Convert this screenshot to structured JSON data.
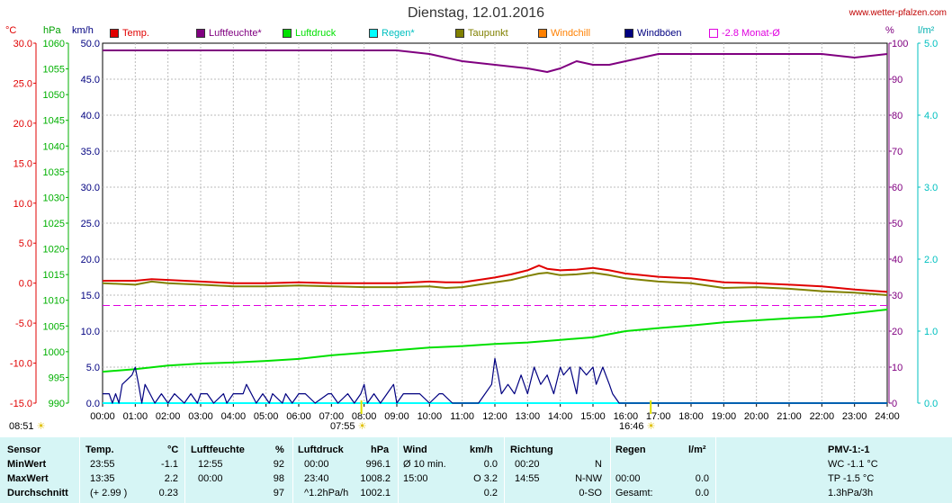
{
  "title": "Dienstag, 12.01.2016",
  "site": "www.wetter-pfalzen.com",
  "units": {
    "temp": "°C",
    "pressure": "hPa",
    "wind": "km/h",
    "humidity": "%",
    "rain": "l/m²"
  },
  "legend": [
    {
      "label": "Temp.",
      "color": "#e00000",
      "hollow": false
    },
    {
      "label": "Luftfeuchte*",
      "color": "#800080",
      "hollow": false
    },
    {
      "label": "Luftdruck",
      "color": "#00e000",
      "hollow": false
    },
    {
      "label": "Regen*",
      "color": "#00ffff",
      "hollow": false
    },
    {
      "label": "Taupunkt",
      "color": "#808000",
      "hollow": false
    },
    {
      "label": "Windchill",
      "color": "#ff8000",
      "hollow": false
    },
    {
      "label": "Windböen",
      "color": "#000080",
      "hollow": false
    },
    {
      "label": "-2.8 Monat-Ø",
      "color": "#e000e0",
      "hollow": true
    }
  ],
  "sun": {
    "sunrise": "07:55",
    "sunset": "16:46",
    "time": "08:51"
  },
  "colors": {
    "temp": "#e00000",
    "humidity": "#800080",
    "pressure": "#00e000",
    "rain": "#00ffff",
    "dewpoint": "#808000",
    "windchill": "#ff8000",
    "gust": "#000080",
    "monthavg": "#e000e0"
  },
  "chart_data": {
    "type": "line",
    "title": "Dienstag, 12.01.2016",
    "x_ticks": [
      "00:00",
      "01:00",
      "02:00",
      "03:00",
      "04:00",
      "05:00",
      "06:00",
      "07:00",
      "08:00",
      "09:00",
      "10:00",
      "11:00",
      "12:00",
      "13:00",
      "14:00",
      "15:00",
      "16:00",
      "17:00",
      "18:00",
      "19:00",
      "20:00",
      "21:00",
      "22:00",
      "23:00",
      "24:00"
    ],
    "axes": {
      "temp": {
        "label": "°C",
        "range": [
          -15,
          30
        ],
        "ticks": [
          "30.0",
          "25.0",
          "20.0",
          "15.0",
          "10.0",
          "5.0",
          "0.0",
          "-5.0",
          "-10.0",
          "-15.0"
        ]
      },
      "pressure": {
        "label": "hPa",
        "range": [
          990,
          1060
        ],
        "ticks": [
          "1060",
          "1055",
          "1050",
          "1045",
          "1040",
          "1035",
          "1030",
          "1025",
          "1020",
          "1015",
          "1010",
          "1005",
          "1000",
          "995",
          "990"
        ]
      },
      "wind": {
        "label": "km/h",
        "range": [
          0,
          50
        ],
        "ticks": [
          "50.0",
          "45.0",
          "40.0",
          "35.0",
          "30.0",
          "25.0",
          "20.0",
          "15.0",
          "10.0",
          "5.0",
          "0.0"
        ]
      },
      "humidity": {
        "label": "%",
        "range": [
          0,
          100
        ],
        "ticks": [
          "100",
          "90",
          "80",
          "70",
          "60",
          "50",
          "40",
          "30",
          "20",
          "10",
          "0"
        ]
      },
      "rain": {
        "label": "l/m²",
        "range": [
          0,
          5
        ],
        "ticks": [
          "5.0",
          "4.0",
          "3.0",
          "2.0",
          "1.0",
          "0.0"
        ]
      }
    },
    "monthly_avg_temp": -2.8,
    "series": [
      {
        "name": "Temp.",
        "axis": "temp",
        "x": [
          0,
          1,
          1.5,
          2,
          3,
          4,
          5,
          6,
          7,
          8,
          9,
          10,
          10.5,
          11,
          11.5,
          12,
          12.5,
          13,
          13.35,
          13.6,
          14,
          14.5,
          15,
          15.5,
          16,
          16.5,
          17,
          18,
          19,
          20,
          21,
          22,
          23,
          24
        ],
        "y": [
          0.3,
          0.3,
          0.5,
          0.4,
          0.2,
          0.0,
          0.0,
          0.1,
          0.0,
          0.0,
          0.0,
          0.2,
          0.1,
          0.1,
          0.4,
          0.7,
          1.1,
          1.6,
          2.2,
          1.8,
          1.6,
          1.7,
          1.9,
          1.6,
          1.2,
          1.0,
          0.8,
          0.6,
          0.1,
          0.0,
          -0.2,
          -0.4,
          -0.8,
          -1.1
        ]
      },
      {
        "name": "Taupunkt",
        "axis": "temp",
        "x": [
          0,
          1,
          1.5,
          2,
          3,
          4,
          5,
          6,
          7,
          8,
          9,
          10,
          10.5,
          11,
          11.5,
          12,
          12.5,
          13,
          13.35,
          13.6,
          14,
          14.5,
          15,
          15.5,
          16,
          16.5,
          17,
          18,
          19,
          20,
          21,
          22,
          23,
          24
        ],
        "y": [
          0.0,
          -0.2,
          0.2,
          0.0,
          -0.2,
          -0.4,
          -0.4,
          -0.3,
          -0.4,
          -0.5,
          -0.5,
          -0.4,
          -0.6,
          -0.5,
          -0.2,
          0.1,
          0.4,
          0.9,
          1.2,
          1.3,
          1.0,
          1.1,
          1.3,
          1.0,
          0.6,
          0.4,
          0.2,
          0.0,
          -0.6,
          -0.5,
          -0.7,
          -1.0,
          -1.2,
          -1.5
        ]
      },
      {
        "name": "Luftfeuchte*",
        "axis": "humidity",
        "x": [
          0,
          1,
          2,
          3,
          4,
          5,
          6,
          7,
          8,
          9,
          10,
          11,
          12,
          13,
          13.6,
          14,
          14.5,
          15,
          15.5,
          16,
          17,
          18,
          19,
          20,
          21,
          22,
          23,
          24
        ],
        "y": [
          98,
          98,
          98,
          98,
          98,
          98,
          98,
          98,
          98,
          98,
          97,
          95,
          94,
          93,
          92,
          93,
          95,
          94,
          94,
          95,
          97,
          97,
          97,
          97,
          97,
          97,
          96,
          97
        ]
      },
      {
        "name": "Luftdruck",
        "axis": "pressure",
        "x": [
          0,
          1,
          2,
          3,
          4,
          5,
          6,
          7,
          8,
          9,
          10,
          11,
          12,
          13,
          14,
          15,
          15.5,
          16,
          17,
          18,
          19,
          20,
          21,
          22,
          23,
          24
        ],
        "y": [
          996.1,
          996.6,
          997.3,
          997.7,
          997.9,
          998.2,
          998.6,
          999.3,
          999.8,
          1000.3,
          1000.8,
          1001.1,
          1001.5,
          1001.8,
          1002.3,
          1002.8,
          1003.4,
          1004.0,
          1004.6,
          1005.1,
          1005.7,
          1006.1,
          1006.5,
          1006.8,
          1007.5,
          1008.2
        ]
      },
      {
        "name": "Windböen",
        "axis": "wind",
        "x": [
          0,
          0.2,
          0.3,
          0.4,
          0.5,
          0.6,
          0.9,
          1.0,
          1.1,
          1.2,
          1.3,
          1.45,
          1.6,
          1.8,
          2.0,
          2.2,
          2.5,
          2.7,
          2.9,
          3.0,
          3.2,
          3.4,
          3.7,
          3.8,
          4.0,
          4.1,
          4.3,
          4.4,
          4.7,
          4.9,
          5.1,
          5.2,
          5.5,
          5.6,
          5.8,
          6.0,
          6.2,
          6.5,
          6.9,
          7.0,
          7.2,
          7.5,
          7.7,
          7.9,
          8.0,
          8.1,
          8.3,
          8.5,
          8.7,
          8.9,
          9.0,
          9.2,
          9.5,
          9.7,
          10.0,
          10.3,
          10.4,
          10.7,
          10.9,
          11.0,
          11.2,
          11.5,
          11.7,
          11.9,
          12.0,
          12.1,
          12.2,
          12.4,
          12.6,
          12.8,
          13.0,
          13.2,
          13.4,
          13.6,
          13.8,
          14.0,
          14.1,
          14.3,
          14.5,
          14.6,
          14.8,
          15.0,
          15.1,
          15.3,
          15.5,
          15.6,
          15.8,
          16.0,
          16.1,
          17,
          24
        ],
        "y": [
          1.3,
          1.3,
          0,
          1.3,
          0,
          2.6,
          3.9,
          5,
          2.6,
          0,
          2.6,
          1.3,
          0,
          1.3,
          0,
          1.3,
          0,
          1.3,
          0,
          1.3,
          1.3,
          0,
          1.3,
          0,
          1.3,
          1.3,
          1.3,
          2.6,
          0,
          1.3,
          0,
          1.3,
          0,
          1.3,
          0,
          1.3,
          1.3,
          0,
          1.3,
          1.3,
          0,
          1.3,
          0,
          1.3,
          2.6,
          0,
          1.3,
          0,
          1.3,
          2.6,
          0,
          1.3,
          1.3,
          1.3,
          0,
          1.3,
          1.3,
          0,
          0,
          0,
          0,
          0,
          1.3,
          2.6,
          6.2,
          3.9,
          1.3,
          2.6,
          1.3,
          3.9,
          1.3,
          5,
          2.6,
          3.9,
          1.3,
          5,
          3.9,
          5,
          1.3,
          5,
          3.9,
          5,
          2.6,
          5,
          2.6,
          1.3,
          0,
          0,
          0,
          0,
          0
        ]
      },
      {
        "name": "Regen*",
        "axis": "rain",
        "x": [
          0,
          24
        ],
        "y": [
          0,
          0
        ]
      }
    ]
  },
  "stats": {
    "headers": {
      "sensor": "Sensor",
      "temp": "Temp.",
      "temp_unit": "°C",
      "hum": "Luftfeuchte",
      "hum_unit": "%",
      "press": "Luftdruck",
      "press_unit": "hPa",
      "wind": "Wind",
      "wind_unit": "km/h",
      "dir": "Richtung",
      "rain": "Regen",
      "rain_unit": "l/m²",
      "pmv": "PMV-1:-1"
    },
    "rows": [
      {
        "label": "MinWert",
        "t_time": "23:55",
        "t_val": "-1.1",
        "h_time": "12:55",
        "h_val": "92",
        "p_time": "00:00",
        "p_val": "996.1",
        "w_label": "Ø 10 min.",
        "w_val": "0.0",
        "d_time": "00:20",
        "d_val": "N",
        "r_time": "",
        "r_val": "",
        "extra": "WC -1.1 °C"
      },
      {
        "label": "MaxWert",
        "t_time": "13:35",
        "t_val": "2.2",
        "h_time": "00:00",
        "h_val": "98",
        "p_time": "23:40",
        "p_val": "1008.2",
        "w_label": "15:00",
        "w_val": "O 3.2",
        "d_time": "14:55",
        "d_val": "N-NW",
        "r_time": "00:00",
        "r_val": "0.0",
        "extra": "TP -1.5 °C"
      },
      {
        "label": "Durchschnitt",
        "t_time": "(+ 2.99 )",
        "t_val": "0.23",
        "h_time": "",
        "h_val": "97",
        "p_time": "^1.2hPa/h",
        "p_val": "1002.1",
        "w_label": "",
        "w_val": "0.2",
        "d_time": "",
        "d_val": "0-SO",
        "r_time": "Gesamt:",
        "r_val": "0.0",
        "extra": "1.3hPa/3h"
      }
    ]
  }
}
